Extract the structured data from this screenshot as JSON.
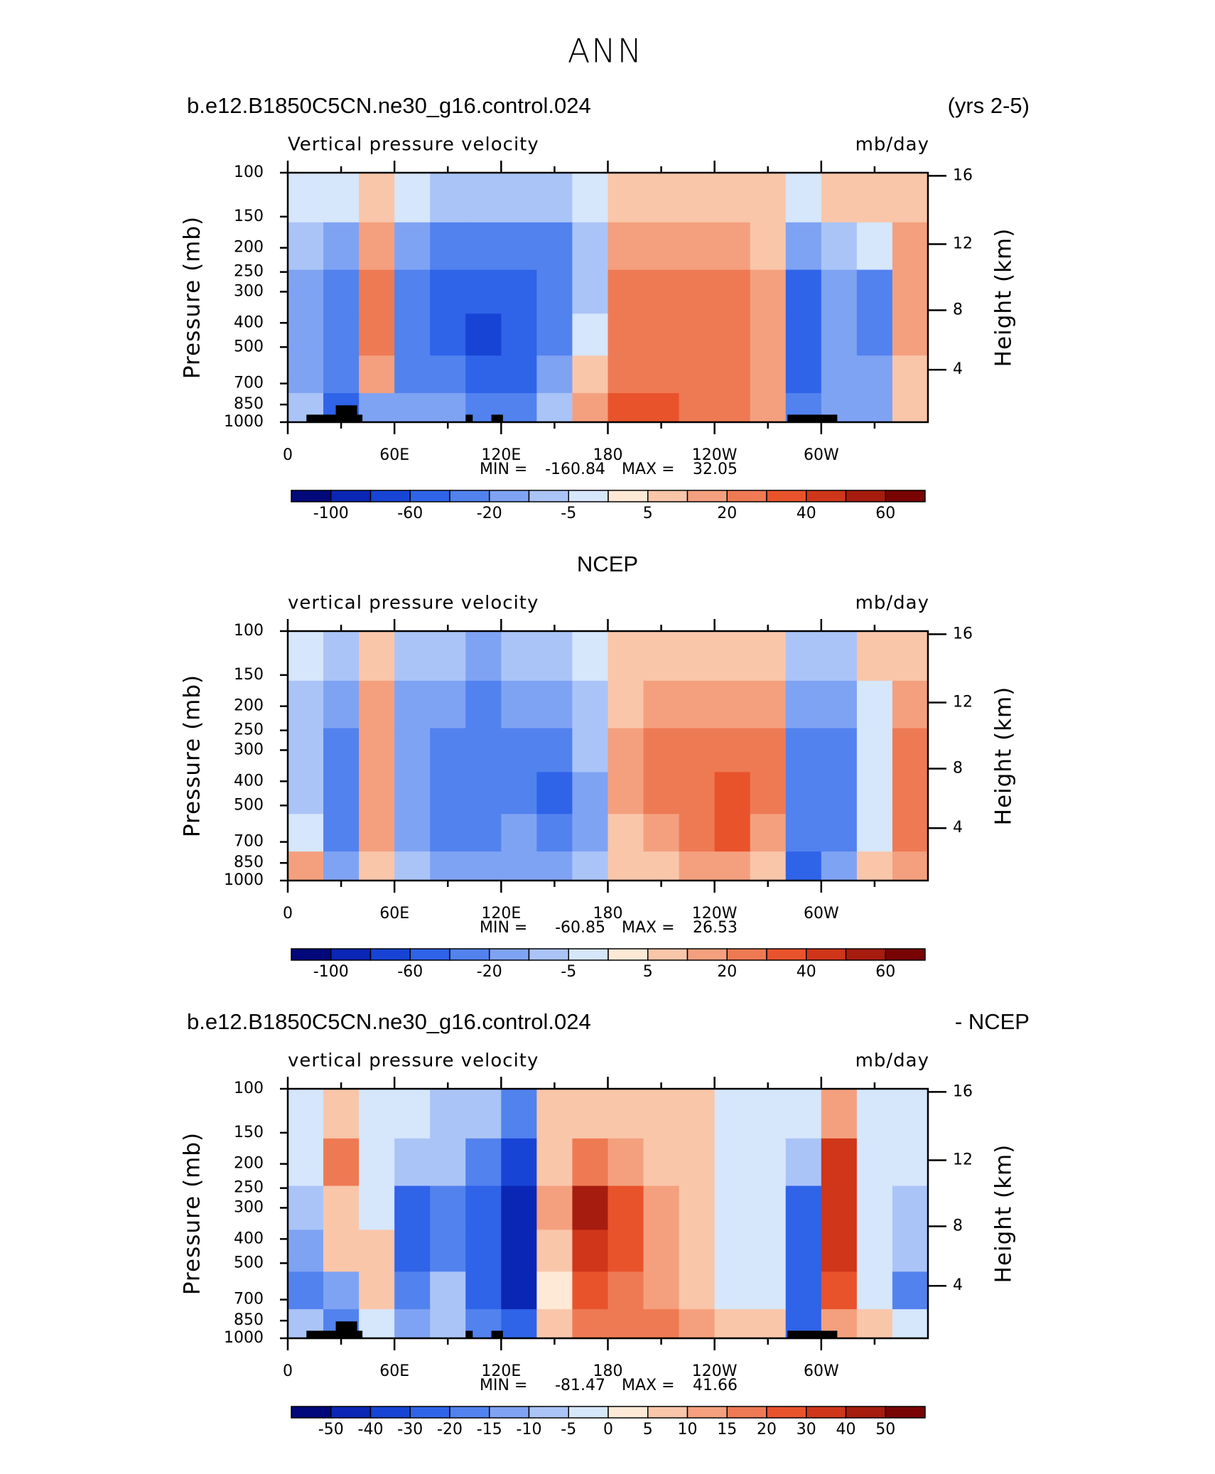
{
  "title": "ANN",
  "chart_data": [
    {
      "type": "contour",
      "left_title": "b.e12.B1850C5CN.ne30_g16.control.024",
      "right_title": "(yrs 2-5)",
      "variable": "Vertical pressure velocity",
      "units": "mb/day",
      "ylabel": "Pressure (mb)",
      "y2label": "Height (km)",
      "x": [
        10,
        30,
        50,
        70,
        90,
        110,
        130,
        150,
        170,
        190,
        210,
        230,
        250,
        270,
        290,
        310,
        330,
        350
      ],
      "y": [
        125,
        200,
        300,
        450,
        650,
        900
      ],
      "values": [
        [
          -5,
          -5,
          5,
          -5,
          -10,
          -10,
          -10,
          -10,
          -5,
          5,
          5,
          5,
          5,
          5,
          -5,
          5,
          5,
          5
        ],
        [
          -10,
          -20,
          10,
          -20,
          -40,
          -40,
          -40,
          -40,
          -10,
          10,
          10,
          10,
          10,
          5,
          -20,
          -10,
          -5,
          10
        ],
        [
          -20,
          -40,
          20,
          -40,
          -60,
          -60,
          -60,
          -40,
          -10,
          20,
          20,
          20,
          20,
          10,
          -60,
          -20,
          -40,
          10
        ],
        [
          -20,
          -40,
          20,
          -40,
          -60,
          -80,
          -60,
          -40,
          -5,
          20,
          20,
          20,
          20,
          10,
          -60,
          -20,
          -40,
          10
        ],
        [
          -20,
          -40,
          10,
          -40,
          -40,
          -60,
          -60,
          -20,
          5,
          20,
          20,
          20,
          20,
          10,
          -60,
          -20,
          -20,
          5
        ],
        [
          -10,
          -60,
          -20,
          -20,
          -20,
          -40,
          -40,
          -10,
          10,
          30,
          30,
          20,
          20,
          10,
          -40,
          -20,
          -20,
          5
        ]
      ],
      "xlim": [
        0,
        360
      ],
      "xticks": [
        0,
        {
          "value": 30,
          "label": null
        },
        {
          "value": 60,
          "label": "60E"
        },
        {
          "value": 90,
          "label": null
        },
        {
          "value": 120,
          "label": "120E"
        },
        {
          "value": 150,
          "label": null
        },
        180,
        {
          "value": 210,
          "label": null
        },
        {
          "value": 240,
          "label": "120W"
        },
        {
          "value": 270,
          "label": null
        },
        {
          "value": 300,
          "label": "60W"
        },
        {
          "value": 330,
          "label": null
        }
      ],
      "ylim": [
        1000,
        100
      ],
      "log_y": true,
      "yticks": [
        100,
        150,
        200,
        250,
        300,
        400,
        500,
        700,
        850,
        1000
      ],
      "y2ticks": [
        4,
        8,
        12,
        16
      ],
      "min_label": "MIN =",
      "min": -160.84,
      "max_label": "MAX =",
      "max": 32.05,
      "colorbar": {
        "levels": [
          -100,
          -80,
          -60,
          -40,
          -20,
          -10,
          -5,
          0,
          5,
          10,
          20,
          30,
          40,
          50,
          60
        ],
        "ticks": [
          -100,
          -60,
          -20,
          -5,
          5,
          20,
          40,
          60
        ],
        "colors": [
          "#00087a",
          "#0a26b4",
          "#1744d4",
          "#2f63e8",
          "#5282ee",
          "#7fa3f3",
          "#abc4f7",
          "#d6e6fb",
          "#fde9d6",
          "#f9c6aa",
          "#f4a07e",
          "#ee7a54",
          "#e8532c",
          "#cf361a",
          "#a61c0f",
          "#780404"
        ]
      }
    },
    {
      "type": "contour",
      "title": "NCEP",
      "variable": "vertical pressure velocity",
      "units": "mb/day",
      "ylabel": "Pressure (mb)",
      "y2label": "Height (km)",
      "x": [
        10,
        30,
        50,
        70,
        90,
        110,
        130,
        150,
        170,
        190,
        210,
        230,
        250,
        270,
        290,
        310,
        330,
        350
      ],
      "y": [
        125,
        200,
        300,
        450,
        650,
        900
      ],
      "values": [
        [
          -5,
          -10,
          5,
          -10,
          -10,
          -20,
          -10,
          -10,
          -5,
          5,
          5,
          5,
          5,
          5,
          -10,
          -10,
          5,
          5
        ],
        [
          -10,
          -20,
          10,
          -20,
          -20,
          -40,
          -20,
          -20,
          -10,
          5,
          10,
          10,
          10,
          10,
          -20,
          -20,
          -5,
          10
        ],
        [
          -10,
          -40,
          10,
          -20,
          -40,
          -40,
          -40,
          -40,
          -10,
          10,
          20,
          20,
          20,
          20,
          -40,
          -40,
          -5,
          20
        ],
        [
          -10,
          -40,
          10,
          -20,
          -40,
          -40,
          -40,
          -60,
          -20,
          10,
          20,
          20,
          30,
          20,
          -40,
          -40,
          -5,
          20
        ],
        [
          -5,
          -40,
          10,
          -20,
          -40,
          -40,
          -20,
          -40,
          -20,
          5,
          10,
          20,
          30,
          10,
          -40,
          -40,
          -5,
          20
        ],
        [
          10,
          -20,
          5,
          -10,
          -20,
          -20,
          -20,
          -20,
          -10,
          5,
          5,
          10,
          10,
          5,
          -60,
          -20,
          5,
          10
        ]
      ],
      "xlim": [
        0,
        360
      ],
      "xticks": [
        0,
        {
          "value": 30,
          "label": null
        },
        {
          "value": 60,
          "label": "60E"
        },
        {
          "value": 90,
          "label": null
        },
        {
          "value": 120,
          "label": "120E"
        },
        {
          "value": 150,
          "label": null
        },
        180,
        {
          "value": 210,
          "label": null
        },
        {
          "value": 240,
          "label": "120W"
        },
        {
          "value": 270,
          "label": null
        },
        {
          "value": 300,
          "label": "60W"
        },
        {
          "value": 330,
          "label": null
        }
      ],
      "ylim": [
        1000,
        100
      ],
      "log_y": true,
      "yticks": [
        100,
        150,
        200,
        250,
        300,
        400,
        500,
        700,
        850,
        1000
      ],
      "y2ticks": [
        4,
        8,
        12,
        16
      ],
      "min_label": "MIN =",
      "min": -60.85,
      "max_label": "MAX =",
      "max": 26.53,
      "colorbar": {
        "levels": [
          -100,
          -80,
          -60,
          -40,
          -20,
          -10,
          -5,
          0,
          5,
          10,
          20,
          30,
          40,
          50,
          60
        ],
        "ticks": [
          -100,
          -60,
          -20,
          -5,
          5,
          20,
          40,
          60
        ],
        "colors": [
          "#00087a",
          "#0a26b4",
          "#1744d4",
          "#2f63e8",
          "#5282ee",
          "#7fa3f3",
          "#abc4f7",
          "#d6e6fb",
          "#fde9d6",
          "#f9c6aa",
          "#f4a07e",
          "#ee7a54",
          "#e8532c",
          "#cf361a",
          "#a61c0f",
          "#780404"
        ]
      }
    },
    {
      "type": "contour",
      "left_title": "b.e12.B1850C5CN.ne30_g16.control.024",
      "right_title": "- NCEP",
      "variable": "vertical pressure velocity",
      "units": "mb/day",
      "ylabel": "Pressure (mb)",
      "y2label": "Height (km)",
      "x": [
        10,
        30,
        50,
        70,
        90,
        110,
        130,
        150,
        170,
        190,
        210,
        230,
        250,
        270,
        290,
        310,
        330,
        350
      ],
      "y": [
        125,
        200,
        300,
        450,
        650,
        900
      ],
      "values": [
        [
          -5,
          5,
          -5,
          -5,
          -10,
          -10,
          -20,
          5,
          5,
          5,
          5,
          5,
          -5,
          -5,
          -5,
          10,
          -5,
          -5
        ],
        [
          -5,
          15,
          -5,
          -10,
          -10,
          -20,
          -40,
          5,
          15,
          10,
          5,
          5,
          -5,
          -5,
          -10,
          30,
          -5,
          -5
        ],
        [
          -10,
          5,
          -5,
          -30,
          -20,
          -30,
          -50,
          10,
          40,
          20,
          10,
          5,
          -5,
          -5,
          -30,
          30,
          -5,
          -10
        ],
        [
          -15,
          5,
          5,
          -30,
          -20,
          -30,
          -50,
          5,
          30,
          20,
          10,
          5,
          -5,
          -5,
          -30,
          30,
          -5,
          -10
        ],
        [
          -20,
          -15,
          5,
          -20,
          -10,
          -30,
          -50,
          0,
          20,
          15,
          10,
          5,
          -5,
          -5,
          -30,
          20,
          -5,
          -20
        ],
        [
          -10,
          -20,
          -5,
          -15,
          -10,
          -20,
          -30,
          5,
          15,
          15,
          15,
          10,
          5,
          5,
          -30,
          10,
          5,
          -5
        ]
      ],
      "xlim": [
        0,
        360
      ],
      "xticks": [
        0,
        {
          "value": 30,
          "label": null
        },
        {
          "value": 60,
          "label": "60E"
        },
        {
          "value": 90,
          "label": null
        },
        {
          "value": 120,
          "label": "120E"
        },
        {
          "value": 150,
          "label": null
        },
        180,
        {
          "value": 210,
          "label": null
        },
        {
          "value": 240,
          "label": "120W"
        },
        {
          "value": 270,
          "label": null
        },
        {
          "value": 300,
          "label": "60W"
        },
        {
          "value": 330,
          "label": null
        }
      ],
      "ylim": [
        1000,
        100
      ],
      "log_y": true,
      "yticks": [
        100,
        150,
        200,
        250,
        300,
        400,
        500,
        700,
        850,
        1000
      ],
      "y2ticks": [
        4,
        8,
        12,
        16
      ],
      "min_label": "MIN =",
      "min": -81.47,
      "max_label": "MAX =",
      "max": 41.66,
      "colorbar": {
        "levels": [
          -50,
          -40,
          -30,
          -20,
          -15,
          -10,
          -5,
          0,
          5,
          10,
          15,
          20,
          30,
          40,
          50
        ],
        "colors": [
          "#00087a",
          "#0a26b4",
          "#1744d4",
          "#2f63e8",
          "#5282ee",
          "#7fa3f3",
          "#abc4f7",
          "#d6e6fb",
          "#fde9d6",
          "#f9c6aa",
          "#f4a07e",
          "#ee7a54",
          "#e8532c",
          "#cf361a",
          "#a61c0f",
          "#780404"
        ]
      }
    }
  ]
}
